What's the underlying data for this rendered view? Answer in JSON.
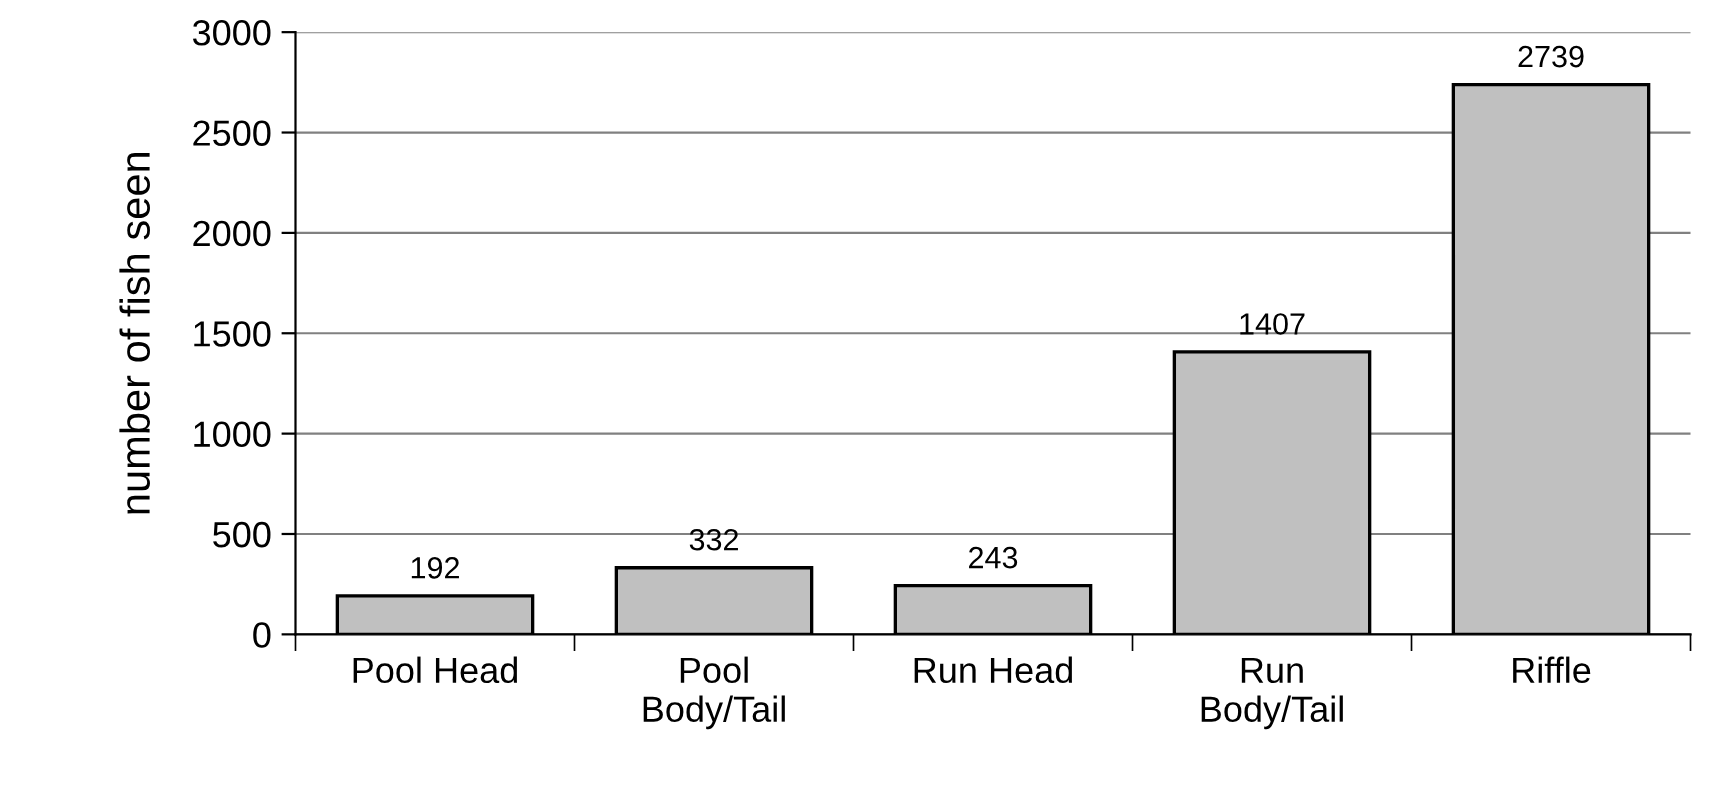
{
  "chart_data": {
    "type": "bar",
    "ylabel": "number of fish seen",
    "categories": [
      "Pool Head",
      "Pool\nBody/Tail",
      "Run Head",
      "Run\nBody/Tail",
      "Riffle"
    ],
    "values": [
      192,
      332,
      243,
      1407,
      2739
    ],
    "color": "#c0c0c0",
    "ylim": [
      0,
      3000
    ],
    "yticks": [
      0,
      500,
      1000,
      1500,
      2000,
      2500,
      3000
    ],
    "grid": "y",
    "data_labels": true
  }
}
